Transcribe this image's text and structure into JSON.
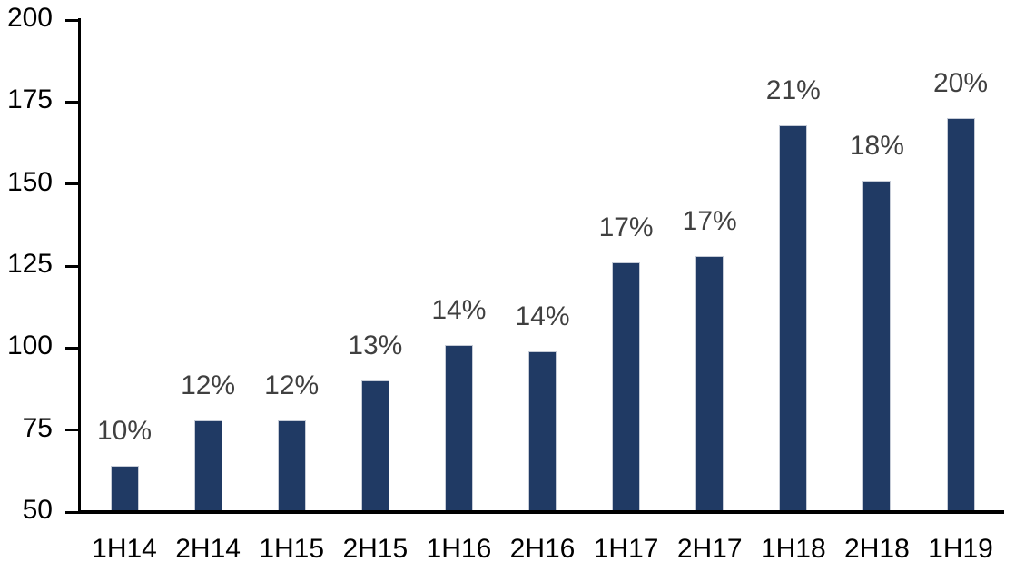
{
  "chart_data": {
    "type": "bar",
    "title": "",
    "xlabel": "",
    "ylabel": "",
    "categories": [
      "1H14",
      "2H14",
      "1H15",
      "2H15",
      "1H16",
      "2H16",
      "1H17",
      "2H17",
      "1H18",
      "2H18",
      "1H19"
    ],
    "values": [
      64,
      78,
      78,
      90,
      101,
      99,
      126,
      128,
      168,
      151,
      170
    ],
    "bar_labels": [
      "10%",
      "12%",
      "12%",
      "13%",
      "14%",
      "14%",
      "17%",
      "17%",
      "21%",
      "18%",
      "20%"
    ],
    "ylim": [
      50,
      200
    ],
    "yticks": [
      50,
      75,
      100,
      125,
      150,
      175,
      200
    ],
    "grid": false,
    "legend_position": "none",
    "colors": {
      "bar_fill": "#203a64",
      "bar_border": "#c6ccd7",
      "data_label": "#404040",
      "axis_line": "#000000",
      "tick_label": "#000000",
      "background": "#ffffff"
    }
  }
}
